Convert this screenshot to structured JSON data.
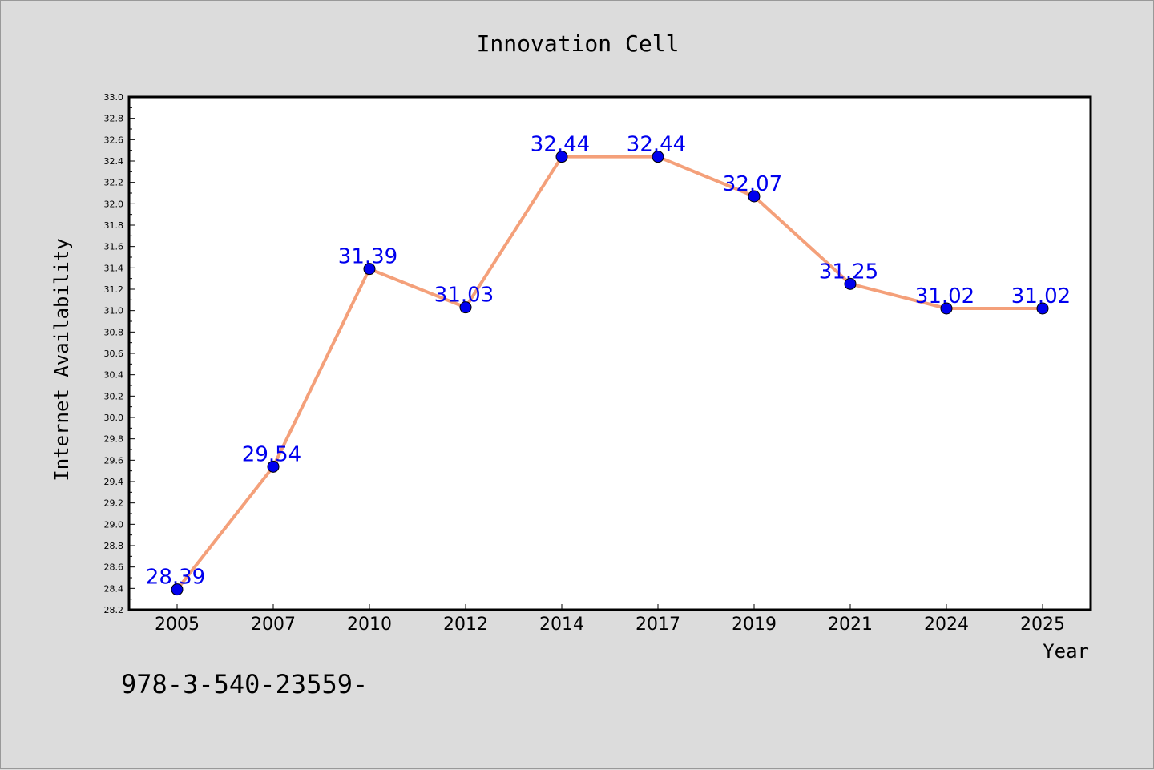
{
  "chart_data": {
    "type": "line",
    "title": "Innovation Cell",
    "xlabel": "Year",
    "ylabel": "Internet Availability",
    "categories": [
      "2005",
      "2007",
      "2010",
      "2012",
      "2014",
      "2017",
      "2019",
      "2021",
      "2024",
      "2025"
    ],
    "series": [
      {
        "values": [
          28.39,
          29.54,
          31.39,
          31.03,
          32.44,
          32.44,
          32.07,
          31.25,
          31.02,
          31.02
        ],
        "line_color": "#f4a07a",
        "marker_color": "#0000ee"
      }
    ],
    "data_labels": [
      "28.39",
      "29.54",
      "31.39",
      "31.03",
      "32.44",
      "32.44",
      "32.07",
      "31.25",
      "31.02",
      "31.02"
    ],
    "ylim": [
      28.2,
      33.0
    ],
    "yticks": [
      "28.2",
      "28.4",
      "28.6",
      "28.8",
      "29.0",
      "29.2",
      "29.4",
      "29.6",
      "29.8",
      "30.0",
      "30.2",
      "30.4",
      "30.6",
      "30.8",
      "31.0",
      "31.2",
      "31.4",
      "31.6",
      "31.8",
      "32.0",
      "32.2",
      "32.4",
      "32.6",
      "32.8",
      "33.0"
    ],
    "grid": false,
    "legend": "none"
  },
  "footer_text": "978-3-540-23559-",
  "colors": {
    "background": "#dcdcdc",
    "plot_background": "#ffffff",
    "label_color": "#0000ee"
  }
}
